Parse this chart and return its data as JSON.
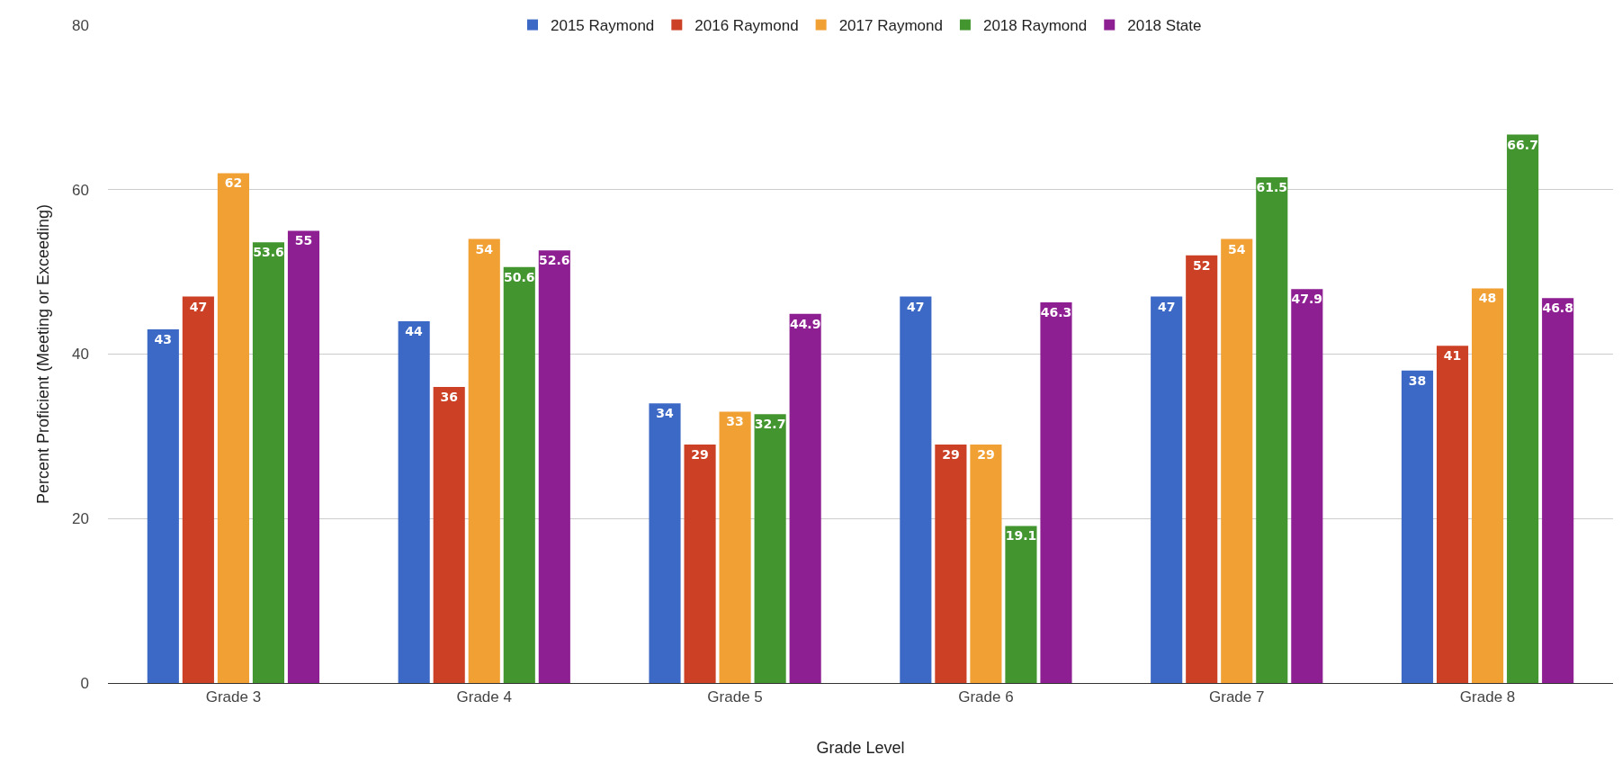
{
  "chart_data": {
    "type": "bar",
    "xlabel": "Grade Level",
    "ylabel": "Percent Proficient (Meeting or Exceeding)",
    "categories": [
      "Grade 3",
      "Grade 4",
      "Grade 5",
      "Grade 6",
      "Grade 7",
      "Grade 8"
    ],
    "series": [
      {
        "name": "2015 Raymond",
        "color": "#3d69c6",
        "values": [
          43,
          44,
          34,
          47,
          47,
          38
        ]
      },
      {
        "name": "2016 Raymond",
        "color": "#cc4125",
        "values": [
          47,
          36,
          29,
          29,
          52,
          41
        ]
      },
      {
        "name": "2017 Raymond",
        "color": "#f1a033",
        "values": [
          62,
          54,
          33,
          29,
          54,
          48
        ]
      },
      {
        "name": "2018 Raymond",
        "color": "#43962f",
        "values": [
          53.6,
          50.6,
          32.7,
          19.1,
          61.5,
          66.7
        ]
      },
      {
        "name": "2018 State",
        "color": "#8e1f92",
        "values": [
          55,
          52.6,
          44.9,
          46.3,
          47.9,
          46.8
        ]
      }
    ],
    "ylim": [
      0,
      80
    ],
    "yticks": [
      0,
      20,
      40,
      60,
      80
    ],
    "grid": "y",
    "legend": "top",
    "data_labels": true
  }
}
